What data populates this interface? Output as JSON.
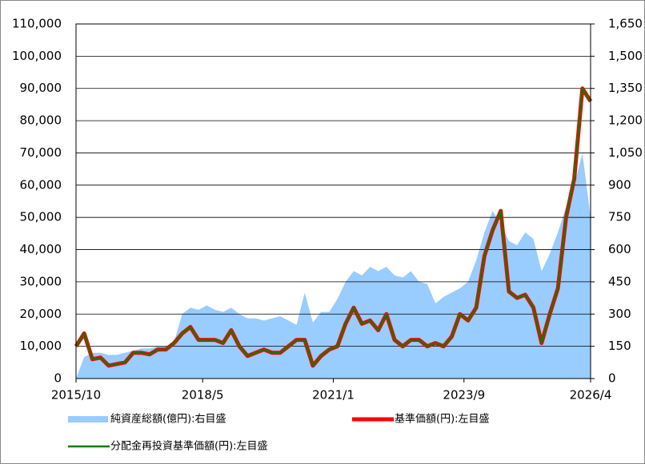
{
  "chart_data": {
    "type": "line",
    "x": [
      "2015/10",
      "2015/12",
      "2016/2",
      "2016/4",
      "2016/6",
      "2016/8",
      "2016/10",
      "2016/12",
      "2017/2",
      "2017/4",
      "2017/6",
      "2017/8",
      "2017/10",
      "2017/12",
      "2018/2",
      "2018/4",
      "2018/6",
      "2018/8",
      "2018/10",
      "2018/12",
      "2019/2",
      "2019/4",
      "2019/6",
      "2019/8",
      "2019/10",
      "2019/12",
      "2020/2",
      "2020/4",
      "2020/6",
      "2020/8",
      "2020/10",
      "2020/12",
      "2021/2",
      "2021/4",
      "2021/6",
      "2021/8",
      "2021/10",
      "2021/12",
      "2022/2",
      "2022/4",
      "2022/6",
      "2022/8",
      "2022/10",
      "2022/12",
      "2023/2",
      "2023/4",
      "2023/6",
      "2023/8",
      "2023/10",
      "2023/12",
      "2024/2",
      "2024/4",
      "2024/6",
      "2024/8",
      "2024/10",
      "2024/12",
      "2025/2",
      "2025/4",
      "2025/6",
      "2025/8",
      "2025/10",
      "2025/12",
      "2026/2",
      "2026/4"
    ],
    "xticks": [
      "2015/10",
      "2018/5",
      "2021/1",
      "2023/9",
      "2026/4"
    ],
    "series": [
      {
        "name": "純資産総額(億円):右目盛",
        "color": "#99ccff",
        "axis": "y2",
        "style": "area",
        "values": [
          0,
          100,
          120,
          120,
          110,
          110,
          120,
          130,
          140,
          140,
          150,
          150,
          170,
          300,
          330,
          320,
          340,
          320,
          310,
          330,
          300,
          280,
          280,
          270,
          280,
          290,
          270,
          250,
          400,
          260,
          310,
          310,
          370,
          450,
          500,
          480,
          520,
          500,
          520,
          480,
          470,
          500,
          450,
          440,
          350,
          380,
          400,
          420,
          450,
          550,
          680,
          780,
          720,
          640,
          620,
          680,
          650,
          500,
          580,
          680,
          800,
          900,
          1050,
          750
        ]
      },
      {
        "name": "基準価額(円):左目盛",
        "color": "#ff0000",
        "style": "line-thick",
        "values": [
          10000,
          14000,
          6000,
          6500,
          4000,
          4500,
          5000,
          8000,
          8000,
          7500,
          9000,
          9000,
          11000,
          14000,
          16000,
          12000,
          12000,
          12000,
          11000,
          15000,
          10000,
          7000,
          8000,
          9000,
          8000,
          8000,
          10000,
          12000,
          12000,
          4000,
          7000,
          9000,
          10000,
          17000,
          22000,
          17000,
          18000,
          15000,
          20000,
          12000,
          10000,
          12000,
          12000,
          10000,
          11000,
          10000,
          13000,
          20000,
          18000,
          22000,
          38000,
          46000,
          52000,
          27000,
          25000,
          26000,
          22000,
          11000,
          20000,
          28000,
          50000,
          62000,
          90000,
          86000
        ]
      },
      {
        "name": "分配金再投資基準価額(円):左目盛",
        "color": "#008000",
        "style": "line-thin",
        "values": [
          10000,
          14000,
          6000,
          6500,
          4000,
          4500,
          5000,
          8000,
          8000,
          7500,
          9000,
          9000,
          11000,
          14000,
          16000,
          12000,
          12000,
          12000,
          11000,
          15000,
          10000,
          7000,
          8000,
          9000,
          8000,
          8000,
          10000,
          12000,
          12000,
          4000,
          7000,
          9000,
          10000,
          17000,
          22000,
          17000,
          18000,
          15000,
          20000,
          12000,
          10000,
          12000,
          12000,
          10000,
          11000,
          10000,
          13000,
          20000,
          18000,
          22000,
          38000,
          46000,
          52000,
          27000,
          25000,
          26000,
          22000,
          11000,
          20000,
          28000,
          50000,
          62000,
          90000,
          86000
        ]
      }
    ],
    "ylim": [
      0,
      110000
    ],
    "yticks": [
      0,
      {
        "value": 10000,
        "label": "10,000"
      },
      {
        "value": 20000,
        "label": "20,000"
      },
      {
        "value": 30000,
        "label": "30,000"
      },
      {
        "value": 40000,
        "label": "40,000"
      },
      {
        "value": 50000,
        "label": "50,000"
      },
      {
        "value": 60000,
        "label": "60,000"
      },
      {
        "value": 70000,
        "label": "70,000"
      },
      {
        "value": 80000,
        "label": "80,000"
      },
      {
        "value": 90000,
        "label": "90,000"
      },
      {
        "value": 100000,
        "label": "100,000"
      },
      {
        "value": 110000,
        "label": "110,000"
      }
    ],
    "y2lim": [
      0,
      1650
    ],
    "y2ticks": [
      0,
      150,
      300,
      450,
      600,
      750,
      900,
      {
        "value": 1050,
        "label": "1,050"
      },
      {
        "value": 1200,
        "label": "1,200"
      },
      {
        "value": 1350,
        "label": "1,350"
      },
      {
        "value": 1500,
        "label": "1,500"
      },
      {
        "value": 1650,
        "label": "1,650"
      }
    ],
    "grid": true
  }
}
